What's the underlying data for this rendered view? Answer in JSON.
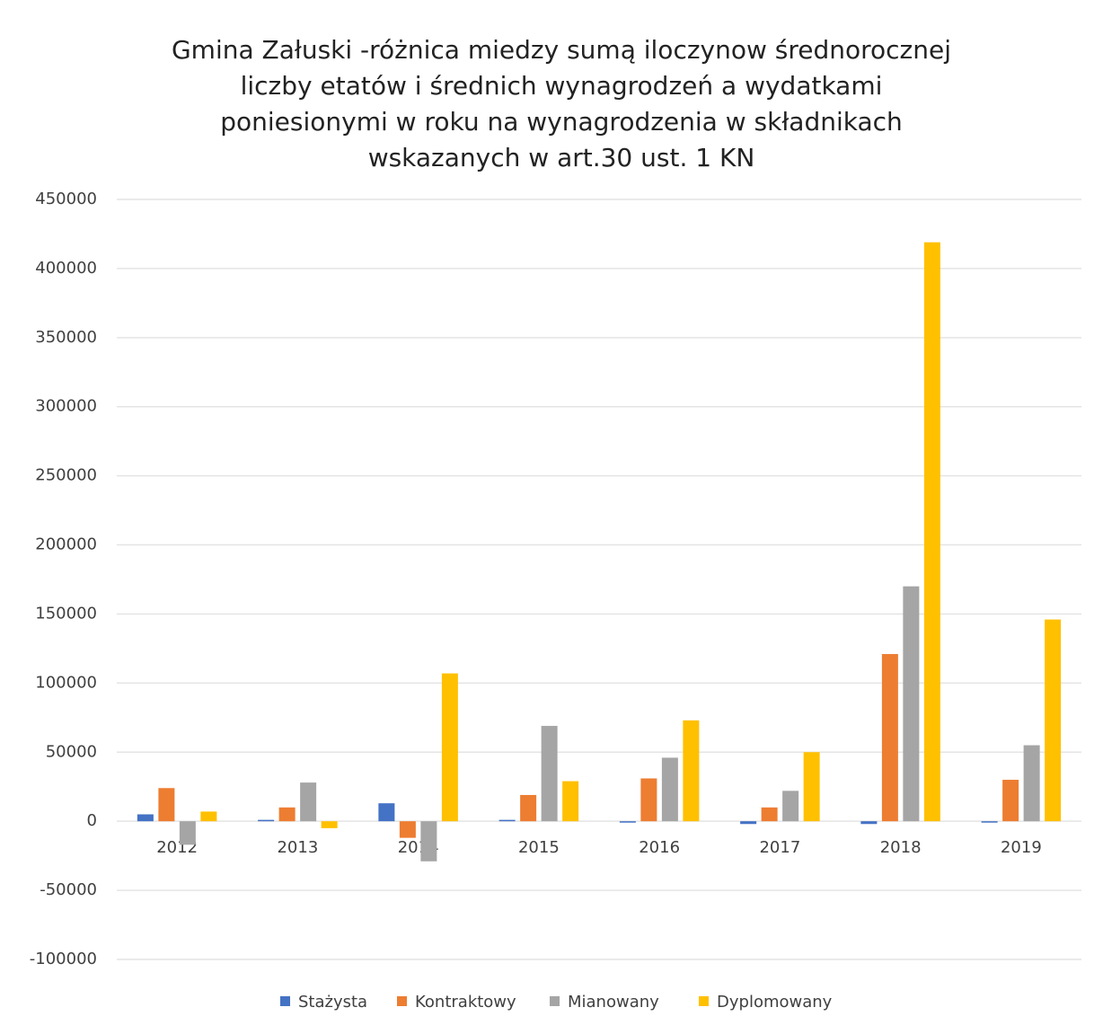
{
  "chart_data": {
    "type": "bar",
    "title": [
      "Gmina Załuski -różnica miedzy sumą iloczynow średnorocznej",
      "liczby etatów i średnich wynagrodzeń a wydatkami",
      "poniesionymi w roku na wynagrodzenia w składnikach",
      "wskazanych w art.30 ust. 1 KN"
    ],
    "categories": [
      "2012",
      "2013",
      "2014",
      "2015",
      "2016",
      "2017",
      "2018",
      "2019"
    ],
    "series": [
      {
        "name": "Stażysta",
        "color": "#4472c4",
        "values": [
          5000,
          1000,
          13000,
          1000,
          -1000,
          -2000,
          -2000,
          -1000
        ]
      },
      {
        "name": "Kontraktowy",
        "color": "#ed7d31",
        "values": [
          24000,
          10000,
          -12000,
          19000,
          31000,
          10000,
          121000,
          30000
        ]
      },
      {
        "name": "Mianowany",
        "color": "#a5a5a5",
        "values": [
          -17000,
          28000,
          -29000,
          69000,
          46000,
          22000,
          170000,
          55000
        ]
      },
      {
        "name": "Dyplomowany",
        "color": "#ffc000",
        "values": [
          7000,
          -5000,
          107000,
          29000,
          73000,
          50000,
          419000,
          146000
        ]
      }
    ],
    "ylim": [
      -100000,
      450000
    ],
    "yticks": [
      -100000,
      -50000,
      0,
      50000,
      100000,
      150000,
      200000,
      250000,
      300000,
      350000,
      400000,
      450000
    ],
    "grid": true,
    "legend": "bottom"
  }
}
